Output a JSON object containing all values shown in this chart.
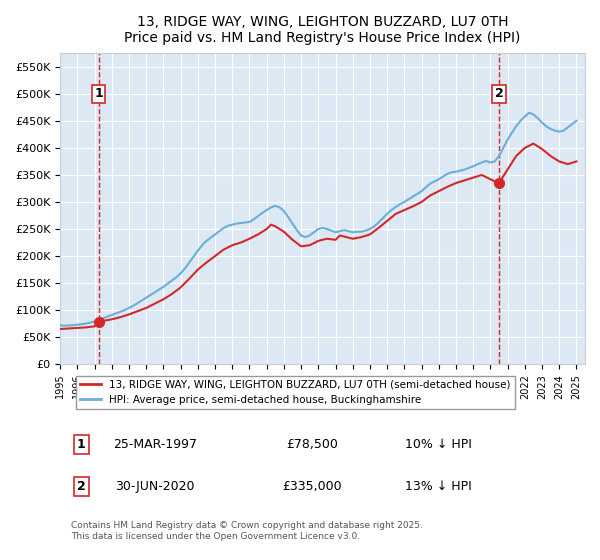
{
  "title": "13, RIDGE WAY, WING, LEIGHTON BUZZARD, LU7 0TH",
  "subtitle": "Price paid vs. HM Land Registry's House Price Index (HPI)",
  "background_color": "#dce9f5",
  "plot_background": "#dce9f5",
  "ylabel_ticks": [
    "£0",
    "£50K",
    "£100K",
    "£150K",
    "£200K",
    "£250K",
    "£300K",
    "£350K",
    "£400K",
    "£450K",
    "£500K",
    "£550K"
  ],
  "ytick_values": [
    0,
    50000,
    100000,
    150000,
    200000,
    250000,
    300000,
    350000,
    400000,
    450000,
    500000,
    550000
  ],
  "ylim": [
    0,
    575000
  ],
  "xlim_start": 1995.0,
  "xlim_end": 2025.5,
  "hpi_color": "#6baed6",
  "price_color": "#d62728",
  "marker1_x": 1997.23,
  "marker1_y": 78500,
  "marker2_x": 2020.5,
  "marker2_y": 335000,
  "legend_label1": "13, RIDGE WAY, WING, LEIGHTON BUZZARD, LU7 0TH (semi-detached house)",
  "legend_label2": "HPI: Average price, semi-detached house, Buckinghamshire",
  "annotation1_label": "1",
  "annotation2_label": "2",
  "table_row1": [
    "1",
    "25-MAR-1997",
    "£78,500",
    "10% ↓ HPI"
  ],
  "table_row2": [
    "2",
    "30-JUN-2020",
    "£335,000",
    "13% ↓ HPI"
  ],
  "footer": "Contains HM Land Registry data © Crown copyright and database right 2025.\nThis data is licensed under the Open Government Licence v3.0.",
  "hpi_data": {
    "years": [
      1995.0,
      1995.25,
      1995.5,
      1995.75,
      1996.0,
      1996.25,
      1996.5,
      1996.75,
      1997.0,
      1997.25,
      1997.5,
      1997.75,
      1998.0,
      1998.25,
      1998.5,
      1998.75,
      1999.0,
      1999.25,
      1999.5,
      1999.75,
      2000.0,
      2000.25,
      2000.5,
      2000.75,
      2001.0,
      2001.25,
      2001.5,
      2001.75,
      2002.0,
      2002.25,
      2002.5,
      2002.75,
      2003.0,
      2003.25,
      2003.5,
      2003.75,
      2004.0,
      2004.25,
      2004.5,
      2004.75,
      2005.0,
      2005.25,
      2005.5,
      2005.75,
      2006.0,
      2006.25,
      2006.5,
      2006.75,
      2007.0,
      2007.25,
      2007.5,
      2007.75,
      2008.0,
      2008.25,
      2008.5,
      2008.75,
      2009.0,
      2009.25,
      2009.5,
      2009.75,
      2010.0,
      2010.25,
      2010.5,
      2010.75,
      2011.0,
      2011.25,
      2011.5,
      2011.75,
      2012.0,
      2012.25,
      2012.5,
      2012.75,
      2013.0,
      2013.25,
      2013.5,
      2013.75,
      2014.0,
      2014.25,
      2014.5,
      2014.75,
      2015.0,
      2015.25,
      2015.5,
      2015.75,
      2016.0,
      2016.25,
      2016.5,
      2016.75,
      2017.0,
      2017.25,
      2017.5,
      2017.75,
      2018.0,
      2018.25,
      2018.5,
      2018.75,
      2019.0,
      2019.25,
      2019.5,
      2019.75,
      2020.0,
      2020.25,
      2020.5,
      2020.75,
      2021.0,
      2021.25,
      2021.5,
      2021.75,
      2022.0,
      2022.25,
      2022.5,
      2022.75,
      2023.0,
      2023.25,
      2023.5,
      2023.75,
      2024.0,
      2024.25,
      2024.5,
      2024.75,
      2025.0
    ],
    "values": [
      72000,
      71000,
      71500,
      72000,
      73000,
      74000,
      75000,
      77000,
      79000,
      82000,
      85000,
      88000,
      91000,
      94000,
      97000,
      100000,
      104000,
      108000,
      113000,
      118000,
      123000,
      128000,
      133000,
      138000,
      143000,
      149000,
      155000,
      161000,
      168000,
      177000,
      188000,
      199000,
      210000,
      220000,
      228000,
      234000,
      240000,
      246000,
      252000,
      256000,
      258000,
      260000,
      261000,
      262000,
      263000,
      268000,
      274000,
      280000,
      285000,
      290000,
      293000,
      290000,
      283000,
      272000,
      260000,
      248000,
      238000,
      235000,
      238000,
      244000,
      250000,
      252000,
      250000,
      247000,
      244000,
      246000,
      248000,
      246000,
      244000,
      245000,
      245000,
      247000,
      250000,
      255000,
      262000,
      270000,
      278000,
      285000,
      291000,
      296000,
      300000,
      305000,
      310000,
      315000,
      320000,
      327000,
      334000,
      338000,
      342000,
      347000,
      352000,
      355000,
      356000,
      358000,
      360000,
      363000,
      366000,
      370000,
      373000,
      376000,
      373000,
      375000,
      385000,
      400000,
      415000,
      428000,
      440000,
      450000,
      458000,
      465000,
      462000,
      455000,
      447000,
      440000,
      435000,
      432000,
      430000,
      432000,
      438000,
      444000,
      450000
    ]
  },
  "price_data": {
    "years": [
      1995.0,
      1995.5,
      1996.0,
      1996.5,
      1997.0,
      1997.25,
      1997.5,
      1998.0,
      1998.5,
      1999.0,
      1999.5,
      2000.0,
      2000.5,
      2001.0,
      2001.5,
      2002.0,
      2002.5,
      2003.0,
      2003.5,
      2004.0,
      2004.5,
      2005.0,
      2005.5,
      2006.0,
      2006.5,
      2007.0,
      2007.25,
      2007.5,
      2008.0,
      2008.5,
      2009.0,
      2009.5,
      2010.0,
      2010.5,
      2011.0,
      2011.25,
      2012.0,
      2012.5,
      2013.0,
      2013.5,
      2014.0,
      2014.5,
      2015.0,
      2015.5,
      2016.0,
      2016.5,
      2017.0,
      2017.5,
      2018.0,
      2018.5,
      2019.0,
      2019.5,
      2020.0,
      2020.5,
      2021.0,
      2021.5,
      2022.0,
      2022.5,
      2023.0,
      2023.5,
      2024.0,
      2024.5,
      2025.0
    ],
    "values": [
      65000,
      66000,
      67000,
      68000,
      70000,
      78500,
      80000,
      83000,
      87000,
      92000,
      98000,
      104000,
      112000,
      120000,
      130000,
      142000,
      158000,
      175000,
      188000,
      200000,
      212000,
      220000,
      225000,
      232000,
      240000,
      250000,
      258000,
      255000,
      245000,
      230000,
      218000,
      220000,
      228000,
      232000,
      230000,
      238000,
      232000,
      235000,
      240000,
      252000,
      265000,
      278000,
      285000,
      292000,
      300000,
      312000,
      320000,
      328000,
      335000,
      340000,
      345000,
      350000,
      342000,
      335000,
      360000,
      385000,
      400000,
      408000,
      398000,
      385000,
      375000,
      370000,
      375000
    ]
  }
}
